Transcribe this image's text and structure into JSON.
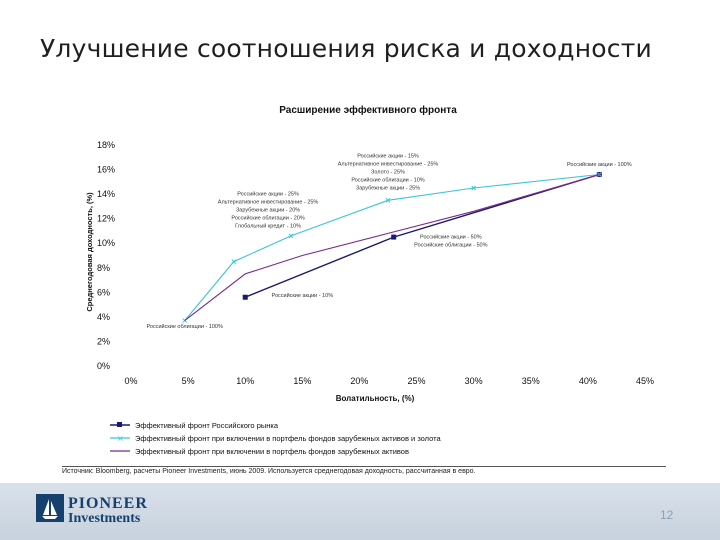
{
  "slide": {
    "title": "Улучшение соотношения риска и доходности",
    "source": "Источник: Bloomberg, расчеты Pioneer Investments, июнь 2009. Используется среднегодовая доходность, рассчитанная в евро.",
    "page_number": "12",
    "logo": {
      "line1": "PIONEER",
      "line2": "Investments"
    }
  },
  "chart_data": {
    "type": "line",
    "title": "Расширение эффективного фронта",
    "xlabel": "Волатильность, (%)",
    "ylabel": "Среднегодовая доходность, (%)",
    "xlim": [
      0,
      45
    ],
    "ylim": [
      0,
      18
    ],
    "x_ticks": [
      "0%",
      "5%",
      "10%",
      "15%",
      "20%",
      "25%",
      "30%",
      "35%",
      "40%",
      "45%"
    ],
    "y_ticks": [
      "0%",
      "2%",
      "4%",
      "6%",
      "8%",
      "10%",
      "12%",
      "14%",
      "16%",
      "18%"
    ],
    "grid": false,
    "legend_position": "bottom",
    "colors": {
      "series1": "#1a1a6e",
      "series2": "#3ec4d8",
      "series3": "#7a2a8c"
    },
    "series": [
      {
        "name": "Эффективный фронт Российского рынка",
        "marker": "square",
        "points": [
          [
            10.0,
            5.6
          ],
          [
            23.0,
            10.5
          ],
          [
            41.0,
            15.6
          ]
        ]
      },
      {
        "name": "Эффективный фронт при включении в портфель фондов зарубежных активов и золота",
        "marker": "x",
        "points": [
          [
            4.7,
            3.7
          ],
          [
            9.0,
            8.5
          ],
          [
            14.0,
            10.6
          ],
          [
            22.5,
            13.5
          ],
          [
            30.0,
            14.5
          ],
          [
            41.0,
            15.6
          ]
        ]
      },
      {
        "name": "Эффективный фронт при включении в портфель фондов зарубежных активов",
        "marker": "none",
        "points": [
          [
            4.7,
            3.7
          ],
          [
            10.0,
            7.5
          ],
          [
            15.0,
            9.0
          ],
          [
            22.5,
            10.8
          ],
          [
            30.0,
            12.6
          ],
          [
            41.0,
            15.6
          ]
        ]
      }
    ],
    "annotations": [
      {
        "lines": [
          "Российские акции - 15%",
          "Альтернативное инвестирование - 25%",
          "Золото - 25%",
          "Российские облигации - 10%",
          "Зарубежные акции - 25%"
        ],
        "x": 22.5,
        "y": 17.0
      },
      {
        "lines": [
          "Российские акции - 100%"
        ],
        "x": 41.0,
        "y": 16.3
      },
      {
        "lines": [
          "Российские акции - 25%",
          "Альтернативное инвестирование - 25%",
          "Зарубежные акции - 20%",
          "Российские облигации - 20%",
          "Глобальный кредит - 10%"
        ],
        "x": 12.0,
        "y": 13.9
      },
      {
        "lines": [
          "Российские акции - 50%",
          "Российские облигации - 50%"
        ],
        "x": 28.0,
        "y": 10.4
      },
      {
        "lines": [
          "Российские акции - 10%"
        ],
        "x": 15.0,
        "y": 5.6
      },
      {
        "lines": [
          "Российские облигации - 100%"
        ],
        "x": 4.7,
        "y": 3.1
      }
    ]
  }
}
